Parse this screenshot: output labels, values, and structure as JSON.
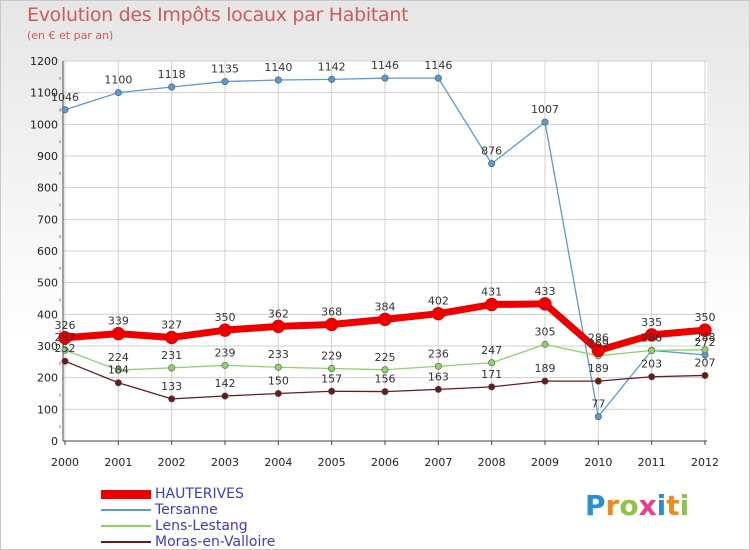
{
  "title": "Evolution des Impôts locaux par Habitant",
  "subtitle": "(en € et par an)",
  "logo": {
    "letters": [
      "P",
      "r",
      "o",
      "x",
      "i",
      "t",
      "i"
    ],
    "colors": [
      "#2a8fd6",
      "#f08a1c",
      "#8cc63f",
      "#e83e8c",
      "#2a8fd6",
      "#f08a1c",
      "#8cc63f"
    ]
  },
  "chart_data": {
    "type": "line",
    "title": "Evolution des Impôts locaux par Habitant",
    "subtitle": "(en € et par an)",
    "xlabel": "",
    "ylabel": "",
    "x": [
      "2000",
      "2001",
      "2002",
      "2003",
      "2004",
      "2005",
      "2006",
      "2007",
      "2008",
      "2009",
      "2010",
      "2011",
      "2012"
    ],
    "ylim": [
      0,
      1200
    ],
    "yticks": [
      "0",
      "100",
      "200",
      "300",
      "400",
      "500",
      "600",
      "700",
      "800",
      "900",
      "1000",
      "1100",
      "1200"
    ],
    "grid": true,
    "legend_position": "bottom-left",
    "series": [
      {
        "name": "HAUTERIVES",
        "color": "#ee0000",
        "emphasis": true,
        "values": [
          326,
          339,
          327,
          350,
          362,
          368,
          384,
          402,
          431,
          433,
          286,
          335,
          350
        ],
        "labels": [
          "326",
          "339",
          "327",
          "350",
          "362",
          "368",
          "384",
          "402",
          "431",
          "433",
          "286",
          "335",
          "350"
        ]
      },
      {
        "name": "Tersanne",
        "color": "#5a9bd5",
        "emphasis": false,
        "values": [
          1046,
          1100,
          1118,
          1135,
          1140,
          1142,
          1146,
          1146,
          876,
          1007,
          77,
          286,
          272
        ],
        "labels": [
          "1046",
          "1100",
          "1118",
          "1135",
          "1140",
          "1142",
          "1146",
          "1146",
          "876",
          "1007",
          "77",
          "286",
          "272"
        ]
      },
      {
        "name": "Lens-Lestang",
        "color": "#8ed36a",
        "emphasis": false,
        "values": [
          287,
          224,
          231,
          239,
          233,
          229,
          225,
          236,
          247,
          305,
          269,
          286,
          288
        ],
        "labels": [
          "287",
          "224",
          "231",
          "239",
          "233",
          "229",
          "225",
          "236",
          "247",
          "305",
          "269",
          "286",
          "288"
        ]
      },
      {
        "name": "Moras-en-Valloire",
        "color": "#6b1a1a",
        "emphasis": false,
        "values": [
          252,
          184,
          133,
          142,
          150,
          157,
          156,
          163,
          171,
          189,
          189,
          203,
          207
        ],
        "labels": [
          "252",
          "184",
          "133",
          "142",
          "150",
          "157",
          "156",
          "163",
          "171",
          "189",
          "189",
          "203",
          "207"
        ]
      }
    ]
  }
}
